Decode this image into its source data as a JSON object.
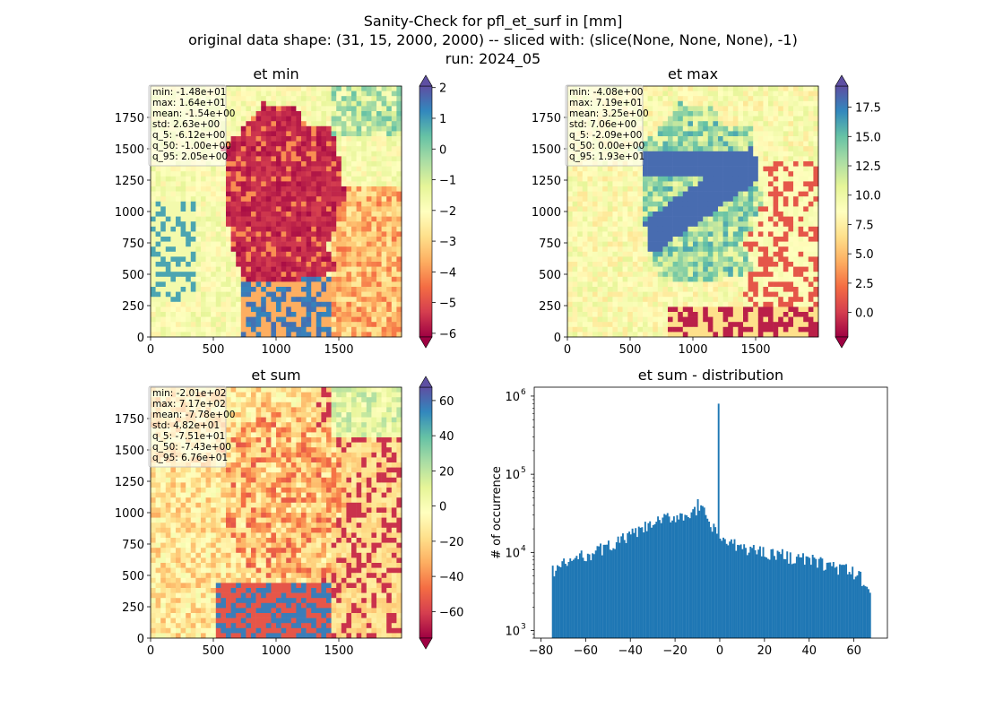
{
  "figure": {
    "title_lines": [
      "Sanity-Check for pfl_et_surf in [mm]",
      "original data shape: (31, 15, 2000, 2000) -- sliced with: (slice(None, None, None), -1)",
      "run: 2024_05"
    ]
  },
  "chart_data": [
    {
      "type": "heatmap",
      "title": "et min",
      "xticks": [
        0,
        500,
        1000,
        1500
      ],
      "yticks": [
        0,
        250,
        500,
        750,
        1000,
        1250,
        1500,
        1750
      ],
      "xlim": [
        0,
        2000
      ],
      "ylim": [
        0,
        2000
      ],
      "colormap": "Spectral",
      "colorbar": {
        "ticks": [
          2,
          1,
          0,
          -1,
          -2,
          -3,
          -4,
          -5,
          -6
        ],
        "range": [
          -6.12,
          2.05
        ],
        "extend": "both"
      },
      "stats": [
        "min: -1.48e+01",
        "max: 1.64e+01",
        "mean: -1.54e+00",
        "std: 2.63e+00",
        "q_5: -6.12e+00",
        "q_50: -1.00e+00",
        "q_95: 2.05e+00"
      ]
    },
    {
      "type": "heatmap",
      "title": "et max",
      "xticks": [
        0,
        500,
        1000,
        1500
      ],
      "yticks": [
        0,
        250,
        500,
        750,
        1000,
        1250,
        1500,
        1750
      ],
      "xlim": [
        0,
        2000
      ],
      "ylim": [
        0,
        2000
      ],
      "colormap": "Spectral",
      "colorbar": {
        "ticks": [
          17.5,
          15.0,
          12.5,
          10.0,
          7.5,
          5.0,
          2.5,
          0.0
        ],
        "tick_labels": [
          "17.5",
          "15.0",
          "12.5",
          "10.0",
          "7.5",
          "5.0",
          "2.5",
          "0.0"
        ],
        "range": [
          -2.09,
          19.3
        ],
        "extend": "both"
      },
      "stats": [
        "min: -4.08e+00",
        "max: 7.19e+01",
        "mean: 3.25e+00",
        "std: 7.06e+00",
        "q_5: -2.09e+00",
        "q_50: 0.00e+00",
        "q_95: 1.93e+01"
      ]
    },
    {
      "type": "heatmap",
      "title": "et sum",
      "xticks": [
        0,
        500,
        1000,
        1500
      ],
      "yticks": [
        0,
        250,
        500,
        750,
        1000,
        1250,
        1500,
        1750
      ],
      "xlim": [
        0,
        2000
      ],
      "ylim": [
        0,
        2000
      ],
      "colormap": "Spectral",
      "colorbar": {
        "ticks": [
          60,
          40,
          20,
          0,
          -20,
          -40,
          -60
        ],
        "range": [
          -75.1,
          67.6
        ],
        "extend": "both"
      },
      "stats": [
        "min: -2.01e+02",
        "max: 7.17e+02",
        "mean: -7.78e+00",
        "std: 4.82e+01",
        "q_5: -7.51e+01",
        "q_50: -7.43e+00",
        "q_95: 6.76e+01"
      ]
    },
    {
      "type": "bar",
      "title": "et sum - distribution",
      "ylabel": "# of occurrence",
      "yscale": "log",
      "xlim": [
        -83,
        75
      ],
      "ylim": [
        800,
        1300000
      ],
      "xticks": [
        -80,
        -60,
        -40,
        -20,
        0,
        20,
        40,
        60
      ],
      "yticks": [
        1000,
        10000,
        100000,
        1000000
      ],
      "ytick_labels": [
        "10",
        "10",
        "10",
        "10"
      ],
      "ytick_exponents": [
        "3",
        "4",
        "5",
        "6"
      ],
      "color": "#1f77b4",
      "histogram": {
        "bin_range": [
          -75.1,
          67.6
        ],
        "anchors": [
          [
            -75.1,
            5800
          ],
          [
            -70,
            7000
          ],
          [
            -65,
            8200
          ],
          [
            -60,
            9300
          ],
          [
            -55,
            10500
          ],
          [
            -50,
            12000
          ],
          [
            -45,
            14000
          ],
          [
            -40,
            16500
          ],
          [
            -35,
            19500
          ],
          [
            -30,
            23000
          ],
          [
            -25,
            26500
          ],
          [
            -20,
            29000
          ],
          [
            -15,
            31000
          ],
          [
            -10,
            33000
          ],
          [
            -7.5,
            34000
          ],
          [
            -4,
            22000
          ],
          [
            -1,
            17000
          ],
          [
            2,
            14000
          ],
          [
            6,
            12500
          ],
          [
            10,
            11500
          ],
          [
            20,
            10300
          ],
          [
            30,
            9000
          ],
          [
            40,
            8000
          ],
          [
            50,
            6800
          ],
          [
            60,
            5500
          ],
          [
            64,
            4500
          ],
          [
            67.6,
            3000
          ]
        ],
        "spikes": [
          [
            -10,
            48000
          ],
          [
            -0.5,
            800000
          ]
        ]
      }
    }
  ]
}
